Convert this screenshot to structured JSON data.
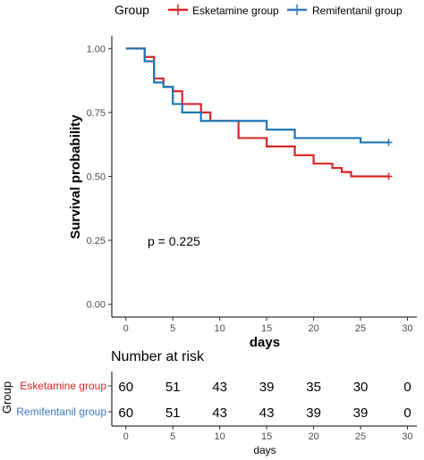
{
  "chart_data": [
    {
      "type": "line",
      "subtype": "kaplan-meier step",
      "xlabel": "days",
      "ylabel": "Survival probability",
      "xlim": [
        -1.5,
        31
      ],
      "ylim": [
        -0.05,
        1.05
      ],
      "xticks": [
        0,
        5,
        10,
        15,
        20,
        25,
        30
      ],
      "yticks": [
        0,
        0.25,
        0.5,
        0.75,
        1
      ],
      "ytick_labels": [
        "0.00",
        "0.25",
        "0.50",
        "0.75",
        "1.00"
      ],
      "grid": false,
      "legend": {
        "title": "Group",
        "position": "top",
        "entries": [
          "Esketamine group",
          "Remifentanil group"
        ]
      },
      "annotation": "p = 0.225",
      "series": [
        {
          "name": "Esketamine group",
          "color": "#d62728",
          "x": [
            0,
            2,
            3,
            4,
            5,
            6,
            8,
            9,
            12,
            15,
            18,
            20,
            22,
            23,
            24,
            25,
            28
          ],
          "y": [
            1.0,
            0.967,
            0.883,
            0.85,
            0.833,
            0.783,
            0.75,
            0.717,
            0.65,
            0.617,
            0.583,
            0.55,
            0.533,
            0.517,
            0.5,
            0.5,
            0.5
          ],
          "censored": [
            {
              "x": 28,
              "y": 0.5
            }
          ]
        },
        {
          "name": "Remifentanil group",
          "color": "#1f77b4",
          "x": [
            0,
            2,
            3,
            4,
            5,
            6,
            8,
            15,
            18,
            25,
            28
          ],
          "y": [
            1.0,
            0.95,
            0.867,
            0.85,
            0.783,
            0.75,
            0.717,
            0.683,
            0.65,
            0.633,
            0.633
          ],
          "censored": [
            {
              "x": 28,
              "y": 0.633
            }
          ]
        }
      ]
    },
    {
      "type": "table",
      "title": "Number at risk",
      "ylabel": "Group",
      "xlabel": "days",
      "xlim": [
        -1.5,
        31
      ],
      "xticks": [
        0,
        5,
        10,
        15,
        20,
        25,
        30
      ],
      "times": [
        0,
        5,
        10,
        15,
        20,
        25,
        30
      ],
      "rows": [
        {
          "group": "Esketamine group",
          "color": "#d62728",
          "values": [
            60,
            51,
            43,
            39,
            35,
            30,
            0
          ]
        },
        {
          "group": "Remifentanil group",
          "color": "#3d7ab8",
          "values": [
            60,
            51,
            43,
            43,
            39,
            39,
            0
          ]
        }
      ]
    }
  ]
}
